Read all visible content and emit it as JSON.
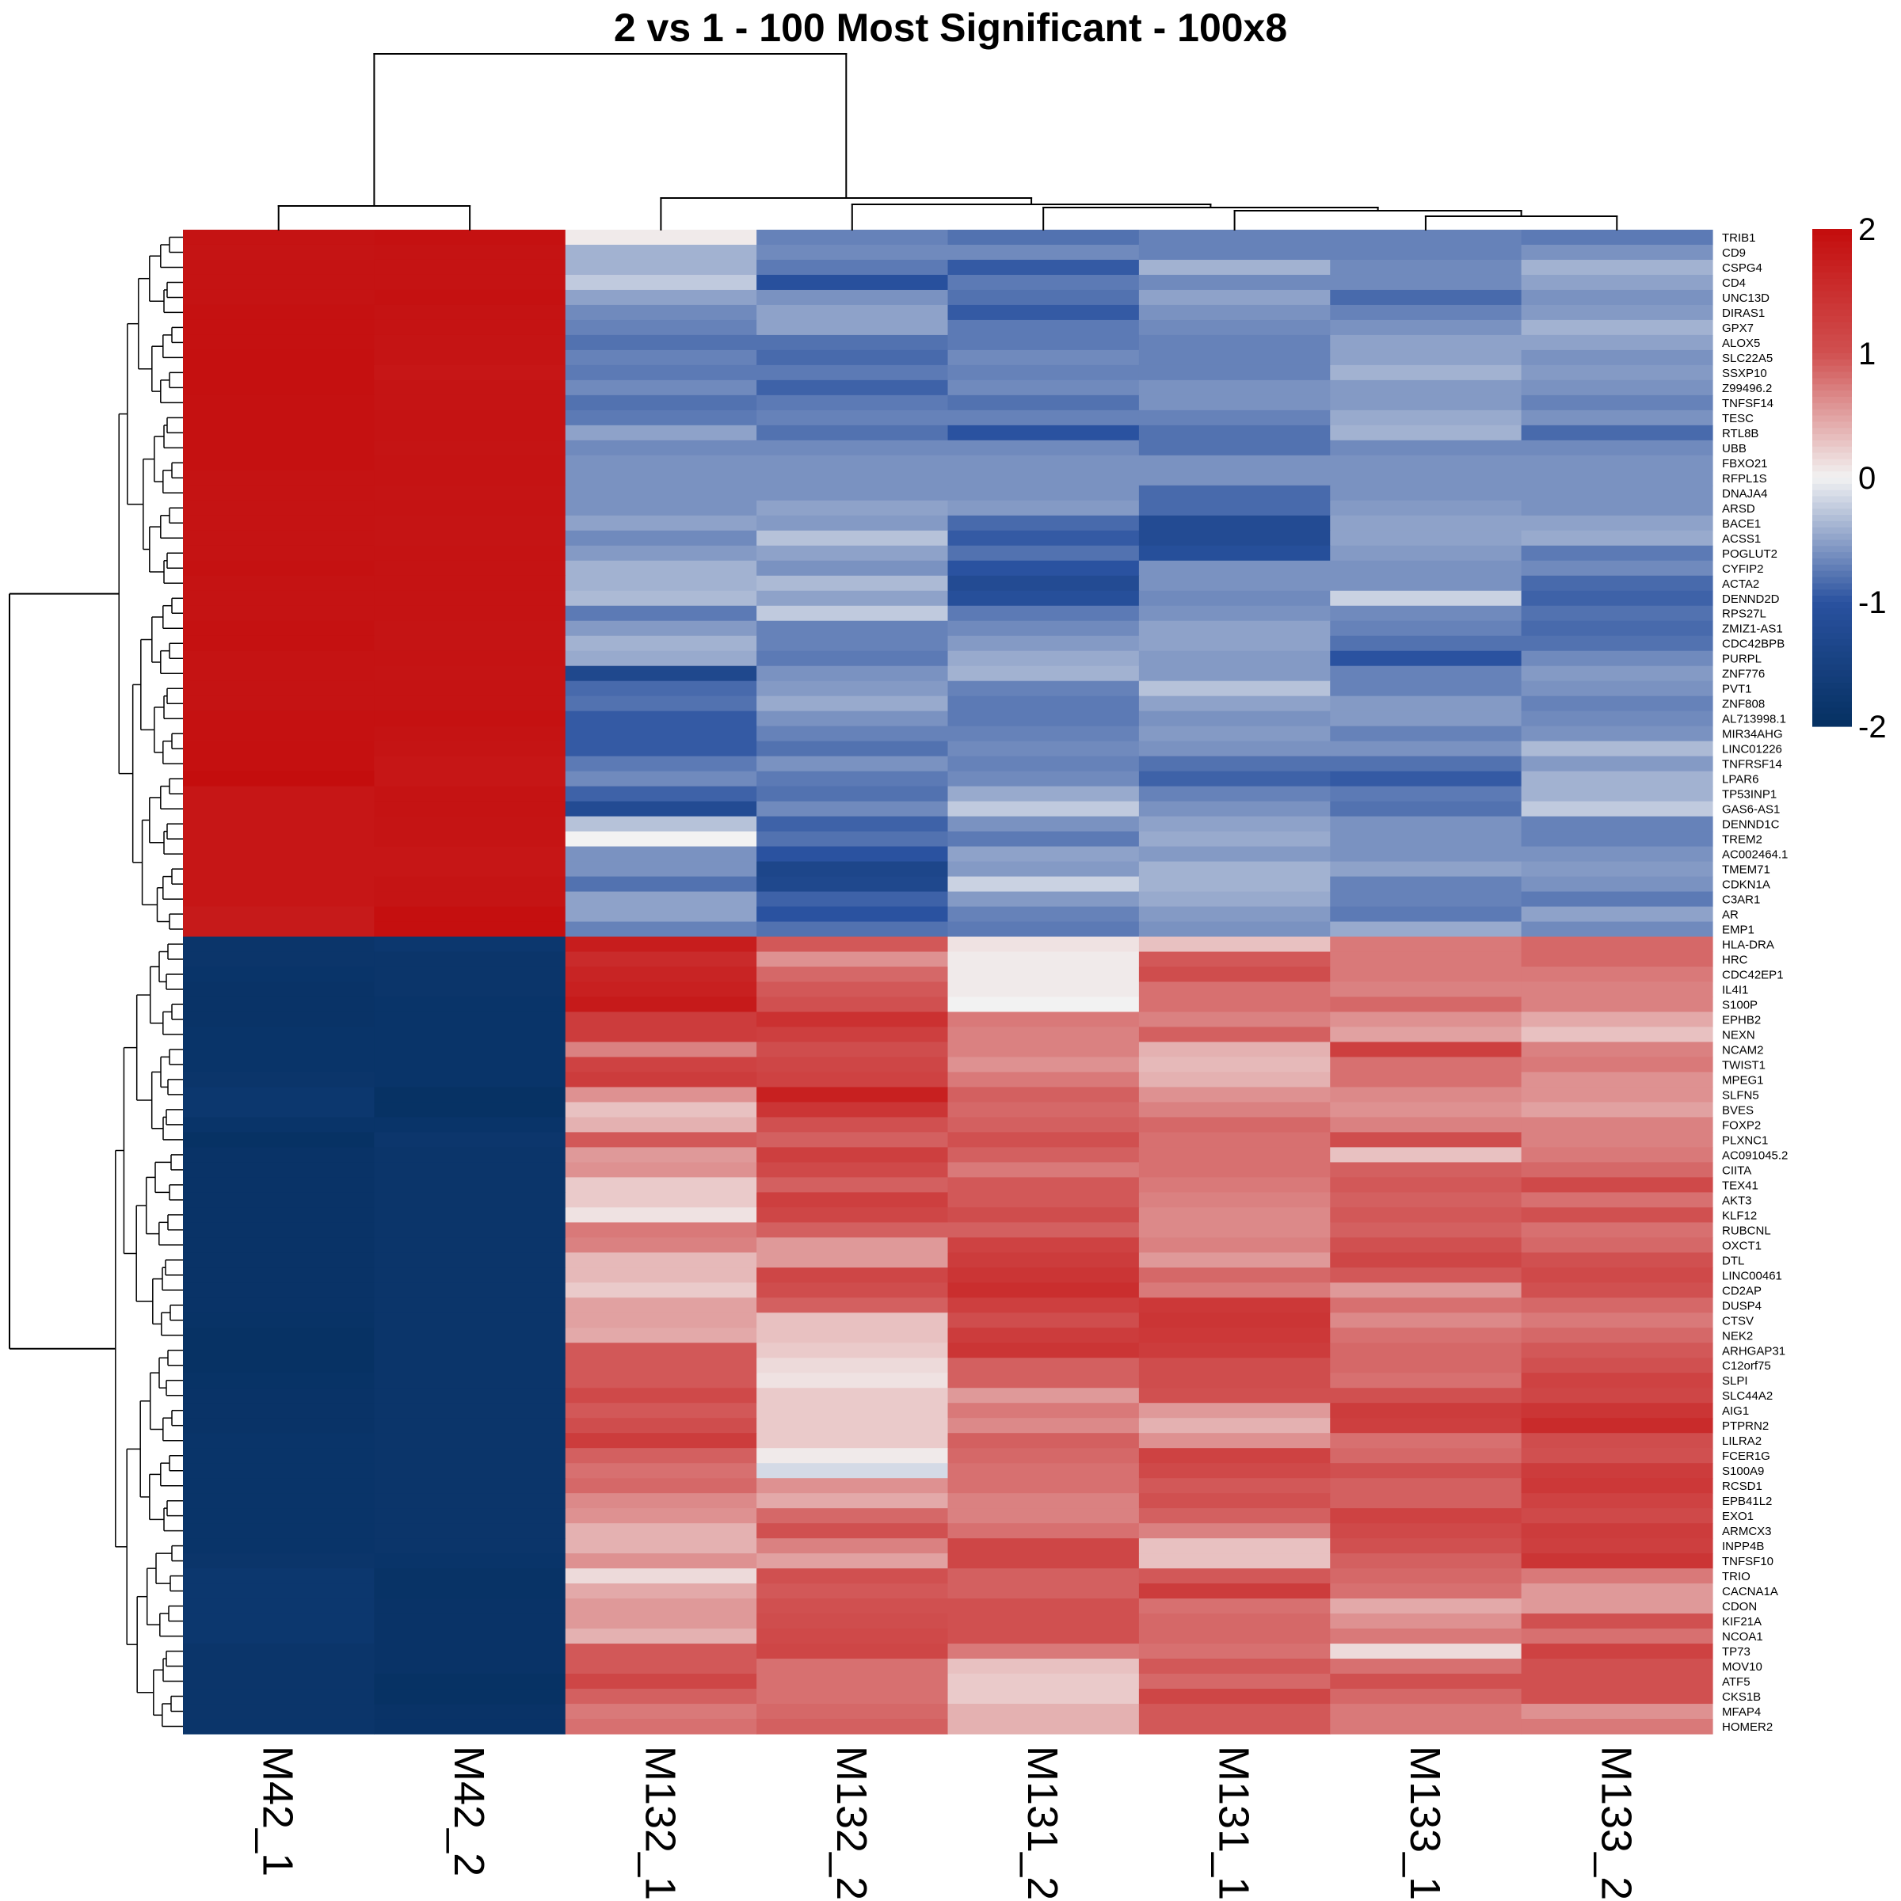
{
  "chart_data": {
    "type": "heatmap",
    "title": "2 vs 1 - 100 Most Significant - 100x8",
    "columns": [
      "M42_1",
      "M42_2",
      "M132_1",
      "M132_2",
      "M131_2",
      "M131_1",
      "M133_1",
      "M133_2"
    ],
    "rows": [
      "TRIB1",
      "CD9",
      "CSPG4",
      "CD4",
      "UNC13D",
      "DIRAS1",
      "GPX7",
      "ALOX5",
      "SLC22A5",
      "SSXP10",
      "Z99496.2",
      "TNFSF14",
      "TESC",
      "RTL8B",
      "UBB",
      "FBXO21",
      "RFPL1S",
      "DNAJA4",
      "ARSD",
      "BACE1",
      "ACSS1",
      "POGLUT2",
      "CYFIP2",
      "ACTA2",
      "DENND2D",
      "RPS27L",
      "ZMIZ1-AS1",
      "CDC42BPB",
      "PURPL",
      "ZNF776",
      "PVT1",
      "ZNF808",
      "AL713998.1",
      "MIR34AHG",
      "LINC01226",
      "TNFRSF14",
      "LPAR6",
      "TP53INP1",
      "GAS6-AS1",
      "DENND1C",
      "TREM2",
      "AC002464.1",
      "TMEM71",
      "CDKN1A",
      "C3AR1",
      "AR",
      "EMP1",
      "HLA-DRA",
      "HRC",
      "CDC42EP1",
      "IL4I1",
      "S100P",
      "EPHB2",
      "NEXN",
      "NCAM2",
      "TWIST1",
      "MPEG1",
      "SLFN5",
      "BVES",
      "FOXP2",
      "PLXNC1",
      "AC091045.2",
      "CIITA",
      "TEX41",
      "AKT3",
      "KLF12",
      "RUBCNL",
      "OXCT1",
      "DTL",
      "LINC00461",
      "CD2AP",
      "DUSP4",
      "CTSV",
      "NEK2",
      "ARHGAP31",
      "C12orf75",
      "SLPI",
      "SLC44A2",
      "AIG1",
      "PTPRN2",
      "LILRA2",
      "FCER1G",
      "S100A9",
      "RCSD1",
      "EPB41L2",
      "EXO1",
      "ARMCX3",
      "INPP4B",
      "TNFSF10",
      "TRIO",
      "CACNA1A",
      "CDON",
      "KIF21A",
      "NCOA1",
      "TP73",
      "MOV10",
      "ATF5",
      "CKS1B",
      "MFAP4",
      "HOMER2"
    ],
    "values": [
      [
        1.9,
        1.92,
        0.05,
        -0.7,
        -0.8,
        -0.7,
        -0.7,
        -0.75
      ],
      [
        1.88,
        1.9,
        -0.4,
        -0.65,
        -0.65,
        -0.7,
        -0.7,
        -0.6
      ],
      [
        1.9,
        1.9,
        -0.4,
        -0.75,
        -0.95,
        -0.4,
        -0.65,
        -0.4
      ],
      [
        1.9,
        1.9,
        -0.25,
        -1.05,
        -0.75,
        -0.65,
        -0.65,
        -0.5
      ],
      [
        1.9,
        1.92,
        -0.5,
        -0.6,
        -0.8,
        -0.5,
        -0.85,
        -0.6
      ],
      [
        1.92,
        1.9,
        -0.65,
        -0.5,
        -0.95,
        -0.6,
        -0.7,
        -0.55
      ],
      [
        1.92,
        1.9,
        -0.7,
        -0.5,
        -0.75,
        -0.65,
        -0.6,
        -0.4
      ],
      [
        1.93,
        1.88,
        -0.8,
        -0.8,
        -0.75,
        -0.7,
        -0.5,
        -0.5
      ],
      [
        1.94,
        1.88,
        -0.7,
        -0.85,
        -0.65,
        -0.7,
        -0.5,
        -0.6
      ],
      [
        1.94,
        1.85,
        -0.75,
        -0.75,
        -0.7,
        -0.7,
        -0.4,
        -0.55
      ],
      [
        1.94,
        1.88,
        -0.65,
        -0.9,
        -0.65,
        -0.6,
        -0.55,
        -0.6
      ],
      [
        1.93,
        1.88,
        -0.8,
        -0.75,
        -0.8,
        -0.6,
        -0.55,
        -0.7
      ],
      [
        1.92,
        1.9,
        -0.75,
        -0.7,
        -0.7,
        -0.7,
        -0.45,
        -0.6
      ],
      [
        1.92,
        1.9,
        -0.5,
        -0.8,
        -1.0,
        -0.8,
        -0.4,
        -0.85
      ],
      [
        1.92,
        1.88,
        -0.65,
        -0.65,
        -0.65,
        -0.8,
        -0.65,
        -0.65
      ],
      [
        1.92,
        1.9,
        -0.6,
        -0.6,
        -0.6,
        -0.6,
        -0.6,
        -0.6
      ],
      [
        1.9,
        1.9,
        -0.6,
        -0.6,
        -0.6,
        -0.6,
        -0.6,
        -0.6
      ],
      [
        1.9,
        1.88,
        -0.6,
        -0.6,
        -0.6,
        -0.85,
        -0.6,
        -0.6
      ],
      [
        1.9,
        1.9,
        -0.6,
        -0.5,
        -0.55,
        -0.85,
        -0.55,
        -0.6
      ],
      [
        1.9,
        1.88,
        -0.5,
        -0.55,
        -0.85,
        -1.2,
        -0.5,
        -0.5
      ],
      [
        1.9,
        1.88,
        -0.65,
        -0.3,
        -0.95,
        -1.2,
        -0.5,
        -0.45
      ],
      [
        1.9,
        1.9,
        -0.55,
        -0.5,
        -0.8,
        -1.1,
        -0.55,
        -0.75
      ],
      [
        1.92,
        1.9,
        -0.4,
        -0.6,
        -1.0,
        -0.6,
        -0.6,
        -0.65
      ],
      [
        1.9,
        1.9,
        -0.4,
        -0.35,
        -1.2,
        -0.6,
        -0.6,
        -0.85
      ],
      [
        1.9,
        1.9,
        -0.35,
        -0.5,
        -1.1,
        -0.65,
        -0.2,
        -0.9
      ],
      [
        1.9,
        1.9,
        -0.75,
        -0.25,
        -0.75,
        -0.6,
        -0.65,
        -0.8
      ],
      [
        1.92,
        1.88,
        -0.55,
        -0.7,
        -0.65,
        -0.5,
        -0.7,
        -0.85
      ],
      [
        1.92,
        1.88,
        -0.4,
        -0.7,
        -0.55,
        -0.5,
        -0.8,
        -0.8
      ],
      [
        1.9,
        1.9,
        -0.45,
        -0.75,
        -0.45,
        -0.55,
        -1.0,
        -0.65
      ],
      [
        1.9,
        1.88,
        -1.3,
        -0.6,
        -0.4,
        -0.55,
        -0.7,
        -0.55
      ],
      [
        1.9,
        1.9,
        -0.85,
        -0.55,
        -0.7,
        -0.3,
        -0.7,
        -0.6
      ],
      [
        1.9,
        1.9,
        -0.8,
        -0.45,
        -0.75,
        -0.5,
        -0.55,
        -0.7
      ],
      [
        1.92,
        1.92,
        -0.95,
        -0.6,
        -0.75,
        -0.6,
        -0.55,
        -0.65
      ],
      [
        1.93,
        1.9,
        -0.95,
        -0.7,
        -0.7,
        -0.55,
        -0.7,
        -0.6
      ],
      [
        1.94,
        1.88,
        -0.95,
        -0.8,
        -0.65,
        -0.6,
        -0.6,
        -0.35
      ],
      [
        1.94,
        1.85,
        -0.75,
        -0.6,
        -0.7,
        -0.8,
        -0.8,
        -0.55
      ],
      [
        1.98,
        1.85,
        -0.65,
        -0.75,
        -0.65,
        -0.9,
        -0.95,
        -0.4
      ],
      [
        1.85,
        1.9,
        -0.9,
        -0.8,
        -0.45,
        -0.7,
        -0.75,
        -0.4
      ],
      [
        1.85,
        1.9,
        -1.2,
        -0.65,
        -0.25,
        -0.6,
        -0.8,
        -0.25
      ],
      [
        1.85,
        1.88,
        -0.3,
        -0.9,
        -0.6,
        -0.5,
        -0.6,
        -0.7
      ],
      [
        1.85,
        1.88,
        0.0,
        -0.8,
        -0.75,
        -0.45,
        -0.6,
        -0.7
      ],
      [
        1.85,
        1.85,
        -0.6,
        -1.0,
        -0.5,
        -0.55,
        -0.6,
        -0.6
      ],
      [
        1.85,
        1.85,
        -0.6,
        -1.35,
        -0.55,
        -0.4,
        -0.5,
        -0.55
      ],
      [
        1.85,
        1.88,
        -0.8,
        -1.3,
        -0.2,
        -0.4,
        -0.7,
        -0.6
      ],
      [
        1.85,
        1.88,
        -0.5,
        -0.9,
        -0.55,
        -0.45,
        -0.7,
        -0.75
      ],
      [
        1.8,
        1.95,
        -0.5,
        -1.0,
        -0.7,
        -0.55,
        -0.75,
        -0.5
      ],
      [
        1.8,
        1.95,
        -0.7,
        -0.8,
        -0.75,
        -0.6,
        -0.45,
        -0.65
      ],
      [
        -1.85,
        -1.8,
        1.75,
        0.95,
        0.1,
        0.3,
        0.75,
        0.85
      ],
      [
        -1.85,
        -1.85,
        1.55,
        0.6,
        0.05,
        0.95,
        0.75,
        0.85
      ],
      [
        -1.88,
        -1.85,
        1.65,
        0.85,
        0.05,
        1.05,
        0.75,
        0.75
      ],
      [
        -1.9,
        -1.85,
        1.7,
        0.95,
        0.05,
        0.8,
        0.7,
        0.7
      ],
      [
        -1.9,
        -1.88,
        1.8,
        1.0,
        0.0,
        0.8,
        0.85,
        0.7
      ],
      [
        -1.9,
        -1.88,
        1.3,
        1.45,
        0.75,
        0.7,
        0.6,
        0.45
      ],
      [
        -1.88,
        -1.88,
        1.3,
        1.25,
        0.7,
        0.9,
        0.5,
        0.3
      ],
      [
        -1.88,
        -1.88,
        0.7,
        1.05,
        0.7,
        0.4,
        1.25,
        0.7
      ],
      [
        -1.88,
        -1.88,
        1.2,
        1.15,
        0.6,
        0.35,
        0.8,
        0.75
      ],
      [
        -1.85,
        -1.88,
        1.3,
        1.2,
        0.75,
        0.4,
        0.8,
        0.6
      ],
      [
        -1.8,
        -1.95,
        0.6,
        1.7,
        0.9,
        0.6,
        0.65,
        0.6
      ],
      [
        -1.8,
        -1.95,
        0.3,
        1.4,
        0.85,
        0.7,
        0.6,
        0.5
      ],
      [
        -1.88,
        -1.88,
        0.4,
        1.0,
        0.9,
        0.85,
        0.7,
        0.7
      ],
      [
        -1.95,
        -1.82,
        0.95,
        0.9,
        1.0,
        0.8,
        1.05,
        0.7
      ],
      [
        -1.9,
        -1.85,
        0.55,
        1.25,
        0.9,
        0.8,
        0.3,
        0.75
      ],
      [
        -1.9,
        -1.85,
        0.6,
        1.1,
        0.75,
        0.8,
        0.9,
        0.85
      ],
      [
        -1.9,
        -1.85,
        0.25,
        0.9,
        0.95,
        0.75,
        0.95,
        1.1
      ],
      [
        -1.9,
        -1.85,
        0.25,
        1.25,
        0.95,
        0.7,
        0.9,
        0.8
      ],
      [
        -1.9,
        -1.85,
        0.1,
        1.15,
        1.05,
        0.65,
        0.95,
        1.0
      ],
      [
        -1.9,
        -1.85,
        0.75,
        0.9,
        0.9,
        0.65,
        0.9,
        0.8
      ],
      [
        -1.9,
        -1.85,
        0.7,
        0.55,
        1.2,
        0.7,
        1.0,
        0.85
      ],
      [
        -1.9,
        -1.85,
        0.35,
        0.55,
        1.3,
        0.55,
        1.15,
        1.0
      ],
      [
        -1.9,
        -1.85,
        0.35,
        1.15,
        1.4,
        0.85,
        0.95,
        1.1
      ],
      [
        -1.9,
        -1.85,
        0.25,
        1.05,
        1.5,
        0.75,
        0.55,
        1.0
      ],
      [
        -1.9,
        -1.85,
        0.5,
        0.9,
        1.25,
        1.35,
        0.8,
        0.85
      ],
      [
        -1.92,
        -1.85,
        0.5,
        0.3,
        1.05,
        1.4,
        0.65,
        0.75
      ],
      [
        -1.95,
        -1.85,
        0.45,
        0.3,
        1.3,
        1.35,
        0.8,
        0.85
      ],
      [
        -1.95,
        -1.85,
        0.95,
        0.25,
        1.4,
        1.3,
        0.85,
        0.95
      ],
      [
        -1.95,
        -1.85,
        0.95,
        0.15,
        0.9,
        1.05,
        0.85,
        1.0
      ],
      [
        -1.92,
        -1.85,
        0.95,
        0.1,
        0.9,
        1.05,
        0.8,
        1.2
      ],
      [
        -1.9,
        -1.85,
        1.1,
        0.25,
        0.55,
        1.0,
        1.0,
        1.15
      ],
      [
        -1.9,
        -1.85,
        0.95,
        0.25,
        0.75,
        0.55,
        1.3,
        1.4
      ],
      [
        -1.9,
        -1.85,
        1.05,
        0.25,
        0.65,
        0.4,
        1.25,
        1.55
      ],
      [
        -1.88,
        -1.85,
        1.3,
        0.25,
        0.9,
        0.6,
        0.8,
        1.05
      ],
      [
        -1.88,
        -1.85,
        0.9,
        0.05,
        0.85,
        1.2,
        0.85,
        1.0
      ],
      [
        -1.88,
        -1.85,
        0.8,
        -0.15,
        0.8,
        1.1,
        1.0,
        1.3
      ],
      [
        -1.88,
        -1.85,
        0.85,
        0.6,
        0.8,
        0.95,
        0.9,
        1.35
      ],
      [
        -1.88,
        -1.85,
        0.65,
        0.45,
        0.7,
        1.0,
        0.9,
        1.2
      ],
      [
        -1.88,
        -1.85,
        0.6,
        0.85,
        0.7,
        0.9,
        1.2,
        1.1
      ],
      [
        -1.88,
        -1.85,
        0.4,
        1.0,
        0.8,
        0.7,
        1.1,
        1.3
      ],
      [
        -1.88,
        -1.85,
        0.4,
        0.7,
        1.15,
        0.3,
        1.0,
        1.25
      ],
      [
        -1.85,
        -1.88,
        0.6,
        0.5,
        1.15,
        0.3,
        0.9,
        1.4
      ],
      [
        -1.8,
        -1.92,
        0.15,
        1.0,
        0.9,
        0.95,
        0.85,
        0.75
      ],
      [
        -1.8,
        -1.92,
        0.45,
        0.95,
        0.9,
        1.3,
        0.8,
        0.55
      ],
      [
        -1.8,
        -1.9,
        0.55,
        1.0,
        1.0,
        0.8,
        0.45,
        0.55
      ],
      [
        -1.8,
        -1.9,
        0.55,
        1.05,
        1.0,
        0.85,
        0.6,
        1.0
      ],
      [
        -1.8,
        -1.9,
        0.4,
        1.1,
        1.0,
        0.85,
        0.75,
        0.8
      ],
      [
        -1.85,
        -1.9,
        0.95,
        1.15,
        0.75,
        0.8,
        0.15,
        1.2
      ],
      [
        -1.85,
        -1.9,
        0.95,
        0.8,
        0.3,
        0.95,
        0.8,
        1.0
      ],
      [
        -1.85,
        -1.95,
        1.15,
        0.8,
        0.25,
        0.85,
        1.0,
        1.0
      ],
      [
        -1.85,
        -1.95,
        0.9,
        0.8,
        0.25,
        1.15,
        0.85,
        1.0
      ],
      [
        -1.85,
        -1.9,
        0.75,
        0.85,
        0.4,
        0.95,
        0.75,
        0.6
      ],
      [
        -1.85,
        -1.9,
        0.8,
        0.9,
        0.4,
        0.95,
        0.75,
        0.75
      ]
    ],
    "color_scale": {
      "min": -2,
      "max": 2,
      "stops": [
        {
          "v": -2,
          "color": "#053061"
        },
        {
          "v": -1,
          "color": "#2a52a0"
        },
        {
          "v": 0,
          "color": "#f2f2f2"
        },
        {
          "v": 1,
          "color": "#d05050"
        },
        {
          "v": 2,
          "color": "#c40c0c"
        }
      ],
      "ticks": [
        "-2",
        "-1",
        "0",
        "1",
        "2"
      ]
    },
    "row_clusters": [
      47,
      53
    ],
    "column_clusters": [
      2,
      6
    ]
  }
}
